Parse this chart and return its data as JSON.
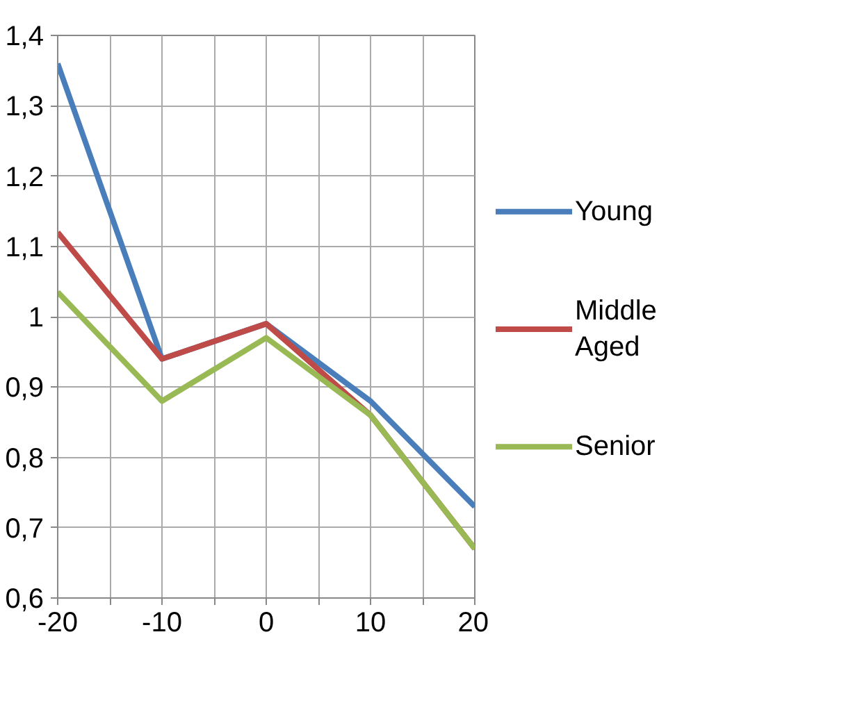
{
  "chart_data": {
    "type": "line",
    "x": [
      -20,
      -10,
      0,
      10,
      20
    ],
    "series": [
      {
        "name": "Young",
        "color": "#4a7ebb",
        "values": [
          1.36,
          0.94,
          0.99,
          0.88,
          0.73
        ]
      },
      {
        "name": "Middle Aged",
        "color": "#be4b48",
        "values": [
          1.12,
          0.94,
          0.99,
          0.86,
          0.67
        ]
      },
      {
        "name": "Senior",
        "color": "#98b954",
        "values": [
          1.035,
          0.88,
          0.97,
          0.86,
          0.67
        ]
      }
    ],
    "xlim": [
      -20,
      20
    ],
    "ylim": [
      0.6,
      1.4
    ],
    "xticks": [
      -20,
      {
        "value": -15,
        "label": null
      },
      -10,
      {
        "value": -5,
        "label": null
      },
      0,
      {
        "value": 5,
        "label": null
      },
      10,
      {
        "value": 15,
        "label": null
      },
      20
    ],
    "yticks": [
      {
        "value": 0.6,
        "label": "0,6"
      },
      {
        "value": 0.7,
        "label": "0,7"
      },
      {
        "value": 0.8,
        "label": "0,8"
      },
      {
        "value": 0.9,
        "label": "0,9"
      },
      1,
      {
        "value": 1.1,
        "label": "1,1"
      },
      {
        "value": 1.2,
        "label": "1,2"
      },
      {
        "value": 1.3,
        "label": "1,3"
      },
      {
        "value": 1.4,
        "label": "1,4"
      }
    ],
    "grid": true,
    "legend": "right",
    "line_style": "solid",
    "marker": "none"
  }
}
